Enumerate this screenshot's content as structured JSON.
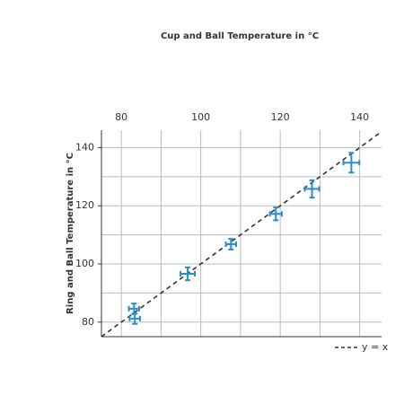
{
  "chart_data": {
    "type": "scatter",
    "title": "Cup and Ball Temperature in °C",
    "ylabel": "Ring and Ball Temperature in °C",
    "xlim": [
      75,
      145.5
    ],
    "ylim": [
      75,
      146
    ],
    "xticks": [
      80,
      100,
      120,
      140
    ],
    "yticks": [
      80,
      100,
      120,
      140
    ],
    "xgrid": [
      80,
      90,
      100,
      110,
      120,
      130,
      140
    ],
    "ygrid": [
      80,
      90,
      100,
      110,
      120,
      130,
      140
    ],
    "x_axis_position": "top",
    "series": [
      {
        "color": "#2a8fcc",
        "x": [
          83.2,
          83.4,
          96.7,
          107.6,
          118.9,
          128.0,
          137.9
        ],
        "y": [
          84.6,
          81.2,
          96.6,
          106.8,
          117.2,
          125.8,
          134.8
        ],
        "xerr": [
          1.3,
          1.3,
          1.8,
          1.3,
          1.5,
          1.8,
          2.0
        ],
        "yerr": [
          1.8,
          1.8,
          2.2,
          1.8,
          2.2,
          3.0,
          3.4
        ]
      }
    ],
    "reference_line": {
      "name": "y = x",
      "slope": 1,
      "intercept": 0,
      "color": "#333",
      "dashed": true
    },
    "legend": "bottom-right"
  }
}
